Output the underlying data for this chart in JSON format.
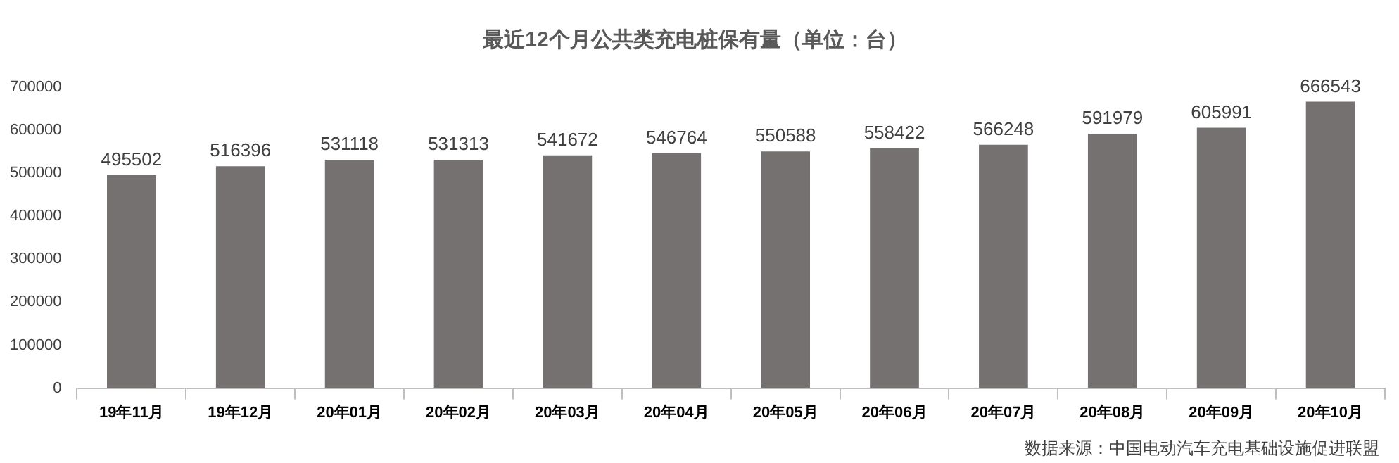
{
  "chart_data": {
    "type": "bar",
    "title": "最近12个月公共类充电桩保有量（单位：台）",
    "categories": [
      "19年11月",
      "19年12月",
      "20年01月",
      "20年02月",
      "20年03月",
      "20年04月",
      "20年05月",
      "20年06月",
      "20年07月",
      "20年08月",
      "20年09月",
      "20年10月"
    ],
    "values": [
      495502,
      516396,
      531118,
      531313,
      541672,
      546764,
      550588,
      558422,
      566248,
      591979,
      605991,
      666543
    ],
    "color": "#767171",
    "ylim": [
      0,
      700000
    ],
    "yticks": [
      0,
      100000,
      200000,
      300000,
      400000,
      500000,
      600000,
      700000
    ],
    "grid": false,
    "data_labels": true,
    "annotations": [
      "数据来源：中国电动汽车充电基础设施促进联盟"
    ]
  }
}
